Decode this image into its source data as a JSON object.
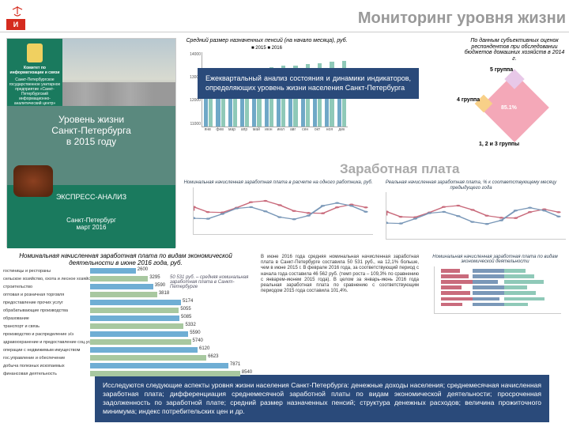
{
  "page": {
    "title": "Мониторинг уровня жизни",
    "logo_text": "И"
  },
  "cover": {
    "committee": "Комитет по информатизации и связи",
    "committee_sub": "Санкт-Петербургское государственное унитарное предприятие «Санкт-Петербургский информационно-аналитический центр»",
    "main_title_l1": "Уровень жизни",
    "main_title_l2": "Санкт-Петербурга",
    "main_title_l3": "в 2015 году",
    "express": "ЭКСПРЕСС-АНАЛИЗ",
    "footer_city": "Санкт-Петербург",
    "footer_date": "март 2016"
  },
  "callouts": {
    "c1": "Ежеквартальный анализ состояния и динамики индикаторов, определяющих уровень жизни населения Санкт-Петербурга",
    "c2": "Исследуются следующие аспекты уровня жизни населения Санкт-Петербурга: денежные доходы населения; среднемесячная начисленная заработная плата; дифференциация среднемесячной заработной платы по видам экономической деятельности; просроченная задолженность по заработной плате; средний размер назначенных пенсий; структура денежных расходов; величина прожиточного минимума; индекс потребительских цен и др."
  },
  "pension": {
    "title": "Средний размер назначенных пенсий (на начало месяца), руб.",
    "legend": "■ 2015   ■ 2016",
    "colors": {
      "2015": "#6fa8c7",
      "2016": "#8fc9b8"
    },
    "ylim": [
      11000,
      14000
    ],
    "yticks": [
      "14000",
      "13000",
      "12000",
      "11000"
    ],
    "months": [
      "янв",
      "фев",
      "мар",
      "апр",
      "май",
      "июн",
      "июл",
      "авг",
      "сен",
      "окт",
      "ноя",
      "дек"
    ],
    "v2015": [
      12400,
      12450,
      12500,
      12600,
      12650,
      12700,
      12750,
      12800,
      12850,
      12900,
      12950,
      13000
    ],
    "v2016": [
      13100,
      13150,
      13200,
      13300,
      13350,
      13400,
      13450,
      13450,
      13500,
      13550,
      13600,
      13650
    ]
  },
  "diamond": {
    "title": "По данным субъективных оценок респондентов при обследовании бюджетов домашних хозяйств в 2014 г.",
    "main_pct": "85.1%",
    "labels": {
      "top": "5 группа",
      "left": "4 группа",
      "bottom": "1, 2 и 3 группы"
    },
    "colors": {
      "main": "#f4a8b8",
      "side": "#f8d088",
      "top": "#e8c8e8"
    }
  },
  "salary_heading": "Заработная плата",
  "mid_charts": [
    {
      "title": "Номинальная начисленная заработная плата в расчете на одного работника, руб.",
      "colors": [
        "#c96b7c",
        "#7a98b8"
      ]
    },
    {
      "title": "Реальная начисленная заработная плата, % к соответствующему месяцу предыдущего года",
      "colors": [
        "#c96b7c",
        "#7a98b8"
      ]
    }
  ],
  "econ": {
    "title": "Номинальная начисленная заработная плата по видам экономической деятельности в июне 2016 года, руб.",
    "note": "50 531 руб. – средняя номинальная заработная плата в Санкт-Петербурге",
    "bar_color_a": "#6faed4",
    "bar_color_b": "#a8c8a0",
    "max": 9000,
    "rows": [
      {
        "label": "гостиницы и рестораны",
        "value": 2600
      },
      {
        "label": "сельское хозяйство, охота и лесное хозяйство",
        "value": 3295
      },
      {
        "label": "строительство",
        "value": 3590
      },
      {
        "label": "оптовая и розничная торговля",
        "value": 3818
      },
      {
        "label": "предоставление прочих услуг",
        "value": 5174
      },
      {
        "label": "обрабатывающие производства",
        "value": 5055
      },
      {
        "label": "образование",
        "value": 5085
      },
      {
        "label": "транспорт и связь",
        "value": 5332
      },
      {
        "label": "производство и распределение э/э",
        "value": 5590
      },
      {
        "label": "здравоохранение и предоставление соц.услуг",
        "value": 5740
      },
      {
        "label": "операции с недвижимым имуществом",
        "value": 6120
      },
      {
        "label": "гос.управление и обеспечение",
        "value": 6623
      },
      {
        "label": "добыча полезных ископаемых",
        "value": 7871
      },
      {
        "label": "финансовая деятельность",
        "value": 8540
      }
    ]
  },
  "text_block": "В июне 2016 года средняя номинальная начисленная заработная плата в Санкт-Петербурге составила 50 531 руб., на 12,1% больше, чем в июне 2015 г. В феврале 2016 года, за соответствующий период с начала года составила 46 562 руб. (темп роста – 109,3% по сравнению с январем-июнем 2015 года). В целом за январь-июнь 2016 года реальная заработная плата по сравнению с соответствующим периодом 2015 года составила 101,4%.",
  "right_chart": {
    "title": "Номинальная начисленная заработная плата по видам экономической деятельности",
    "colors": [
      "#c96b7c",
      "#7a98b8",
      "#8fc9b8"
    ]
  }
}
